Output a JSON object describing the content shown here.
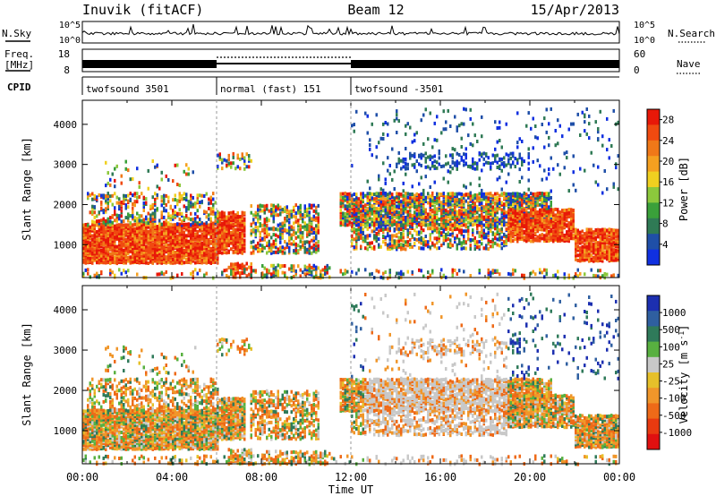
{
  "header": {
    "station": "Inuvik (fitACF)",
    "beam": "Beam 12",
    "date": "15/Apr/2013"
  },
  "status_panels": {
    "nsky_label": "N.Sky",
    "nsky_ticks": [
      "10^5",
      "10^0"
    ],
    "nsearch_label": "N.Search",
    "nsearch_ticks": [
      "10^5",
      "10^0"
    ],
    "freq_label": [
      "Freq.",
      "[MHz]"
    ],
    "freq_ticks": [
      "18",
      "8"
    ],
    "nave_label": "Nave",
    "nave_ticks": [
      "60",
      "0"
    ],
    "cpid_label": "CPID",
    "cpid_segments": [
      {
        "label": "twofsound 3501",
        "start_hour": 0,
        "end_hour": 6
      },
      {
        "label": "normal (fast) 151",
        "start_hour": 6,
        "end_hour": 12
      },
      {
        "label": "twofsound -3501",
        "start_hour": 12,
        "end_hour": 24
      }
    ]
  },
  "colors": {
    "power": [
      "#1030e0",
      "#1f4fa8",
      "#2f7a55",
      "#3aa03a",
      "#8cc83c",
      "#f0d020",
      "#f5a020",
      "#f07818",
      "#f04a10",
      "#e81808"
    ],
    "velocity": [
      "#1c2fb0",
      "#2f5fa0",
      "#2f7a5a",
      "#58b040",
      "#c8c8c8",
      "#e6c02a",
      "#f0962a",
      "#ee6a18",
      "#e83a10",
      "#e01010"
    ]
  },
  "chart_data": [
    {
      "type": "heatmap",
      "name": "Power",
      "xlabel": "",
      "ylabel": "Slant Range [km]",
      "x_range_hours": [
        0,
        24
      ],
      "ylim": [
        180,
        4600
      ],
      "y_ticks": [
        "1000",
        "2000",
        "3000",
        "4000"
      ],
      "colorbar_label": "Power [dB]",
      "colorbar_ticks": [
        "4",
        "8",
        "12",
        "16",
        "20",
        "24",
        "28"
      ],
      "colorbar_range": [
        0,
        30
      ]
    },
    {
      "type": "heatmap",
      "name": "Velocity",
      "xlabel": "Time UT",
      "ylabel": "Slant Range [km]",
      "x_range_hours": [
        0,
        24
      ],
      "ylim": [
        180,
        4600
      ],
      "x_ticks": [
        "00:00",
        "04:00",
        "08:00",
        "12:00",
        "16:00",
        "20:00",
        "00:00"
      ],
      "y_ticks": [
        "1000",
        "2000",
        "3000",
        "4000"
      ],
      "colorbar_label": "Velocity [m s",
      "colorbar_label_sup": "-1",
      "colorbar_label_end": "]",
      "colorbar_ticks": [
        "1000",
        "500",
        "100",
        "25",
        "-25",
        "-100",
        "-500",
        "-1000"
      ]
    }
  ]
}
